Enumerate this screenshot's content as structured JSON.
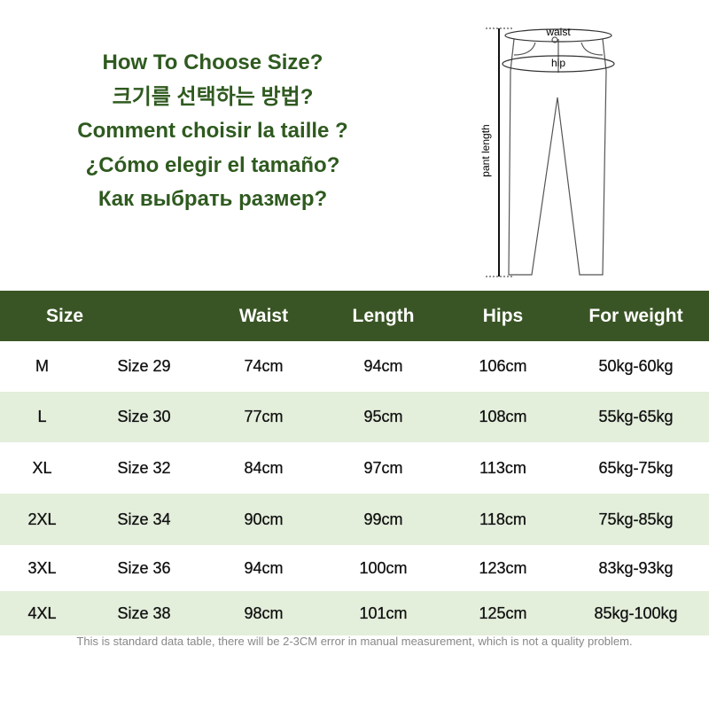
{
  "titles": [
    "How To Choose Size?",
    "크기를 선택하는 방법?",
    "Comment choisir la taille ?",
    "¿Cómo elegir el tamaño?",
    "Как выбрать размер?"
  ],
  "diagram": {
    "waist": "waist",
    "hip": "hip",
    "length": "pant length"
  },
  "table": {
    "headers": [
      "Size",
      "Waist",
      "Length",
      "Hips",
      "For weight"
    ],
    "rows": [
      [
        "M",
        "Size 29",
        "74cm",
        "94cm",
        "106cm",
        "50kg-60kg"
      ],
      [
        "L",
        "Size 30",
        "77cm",
        "95cm",
        "108cm",
        "55kg-65kg"
      ],
      [
        "XL",
        "Size 32",
        "84cm",
        "97cm",
        "113cm",
        "65kg-75kg"
      ],
      [
        "2XL",
        "Size 34",
        "90cm",
        "99cm",
        "118cm",
        "75kg-85kg"
      ],
      [
        "3XL",
        "Size 36",
        "94cm",
        "100cm",
        "123cm",
        "83kg-93kg"
      ],
      [
        "4XL",
        "Size 38",
        "98cm",
        "101cm",
        "125cm",
        "85kg-100kg"
      ]
    ]
  },
  "note": "This is standard data table, there will be 2-3CM error in manual measurement, which is not a quality problem.",
  "colors": {
    "header": "#3a5525",
    "title": "#2f5a1f",
    "alt_row": "#e3eedb"
  }
}
